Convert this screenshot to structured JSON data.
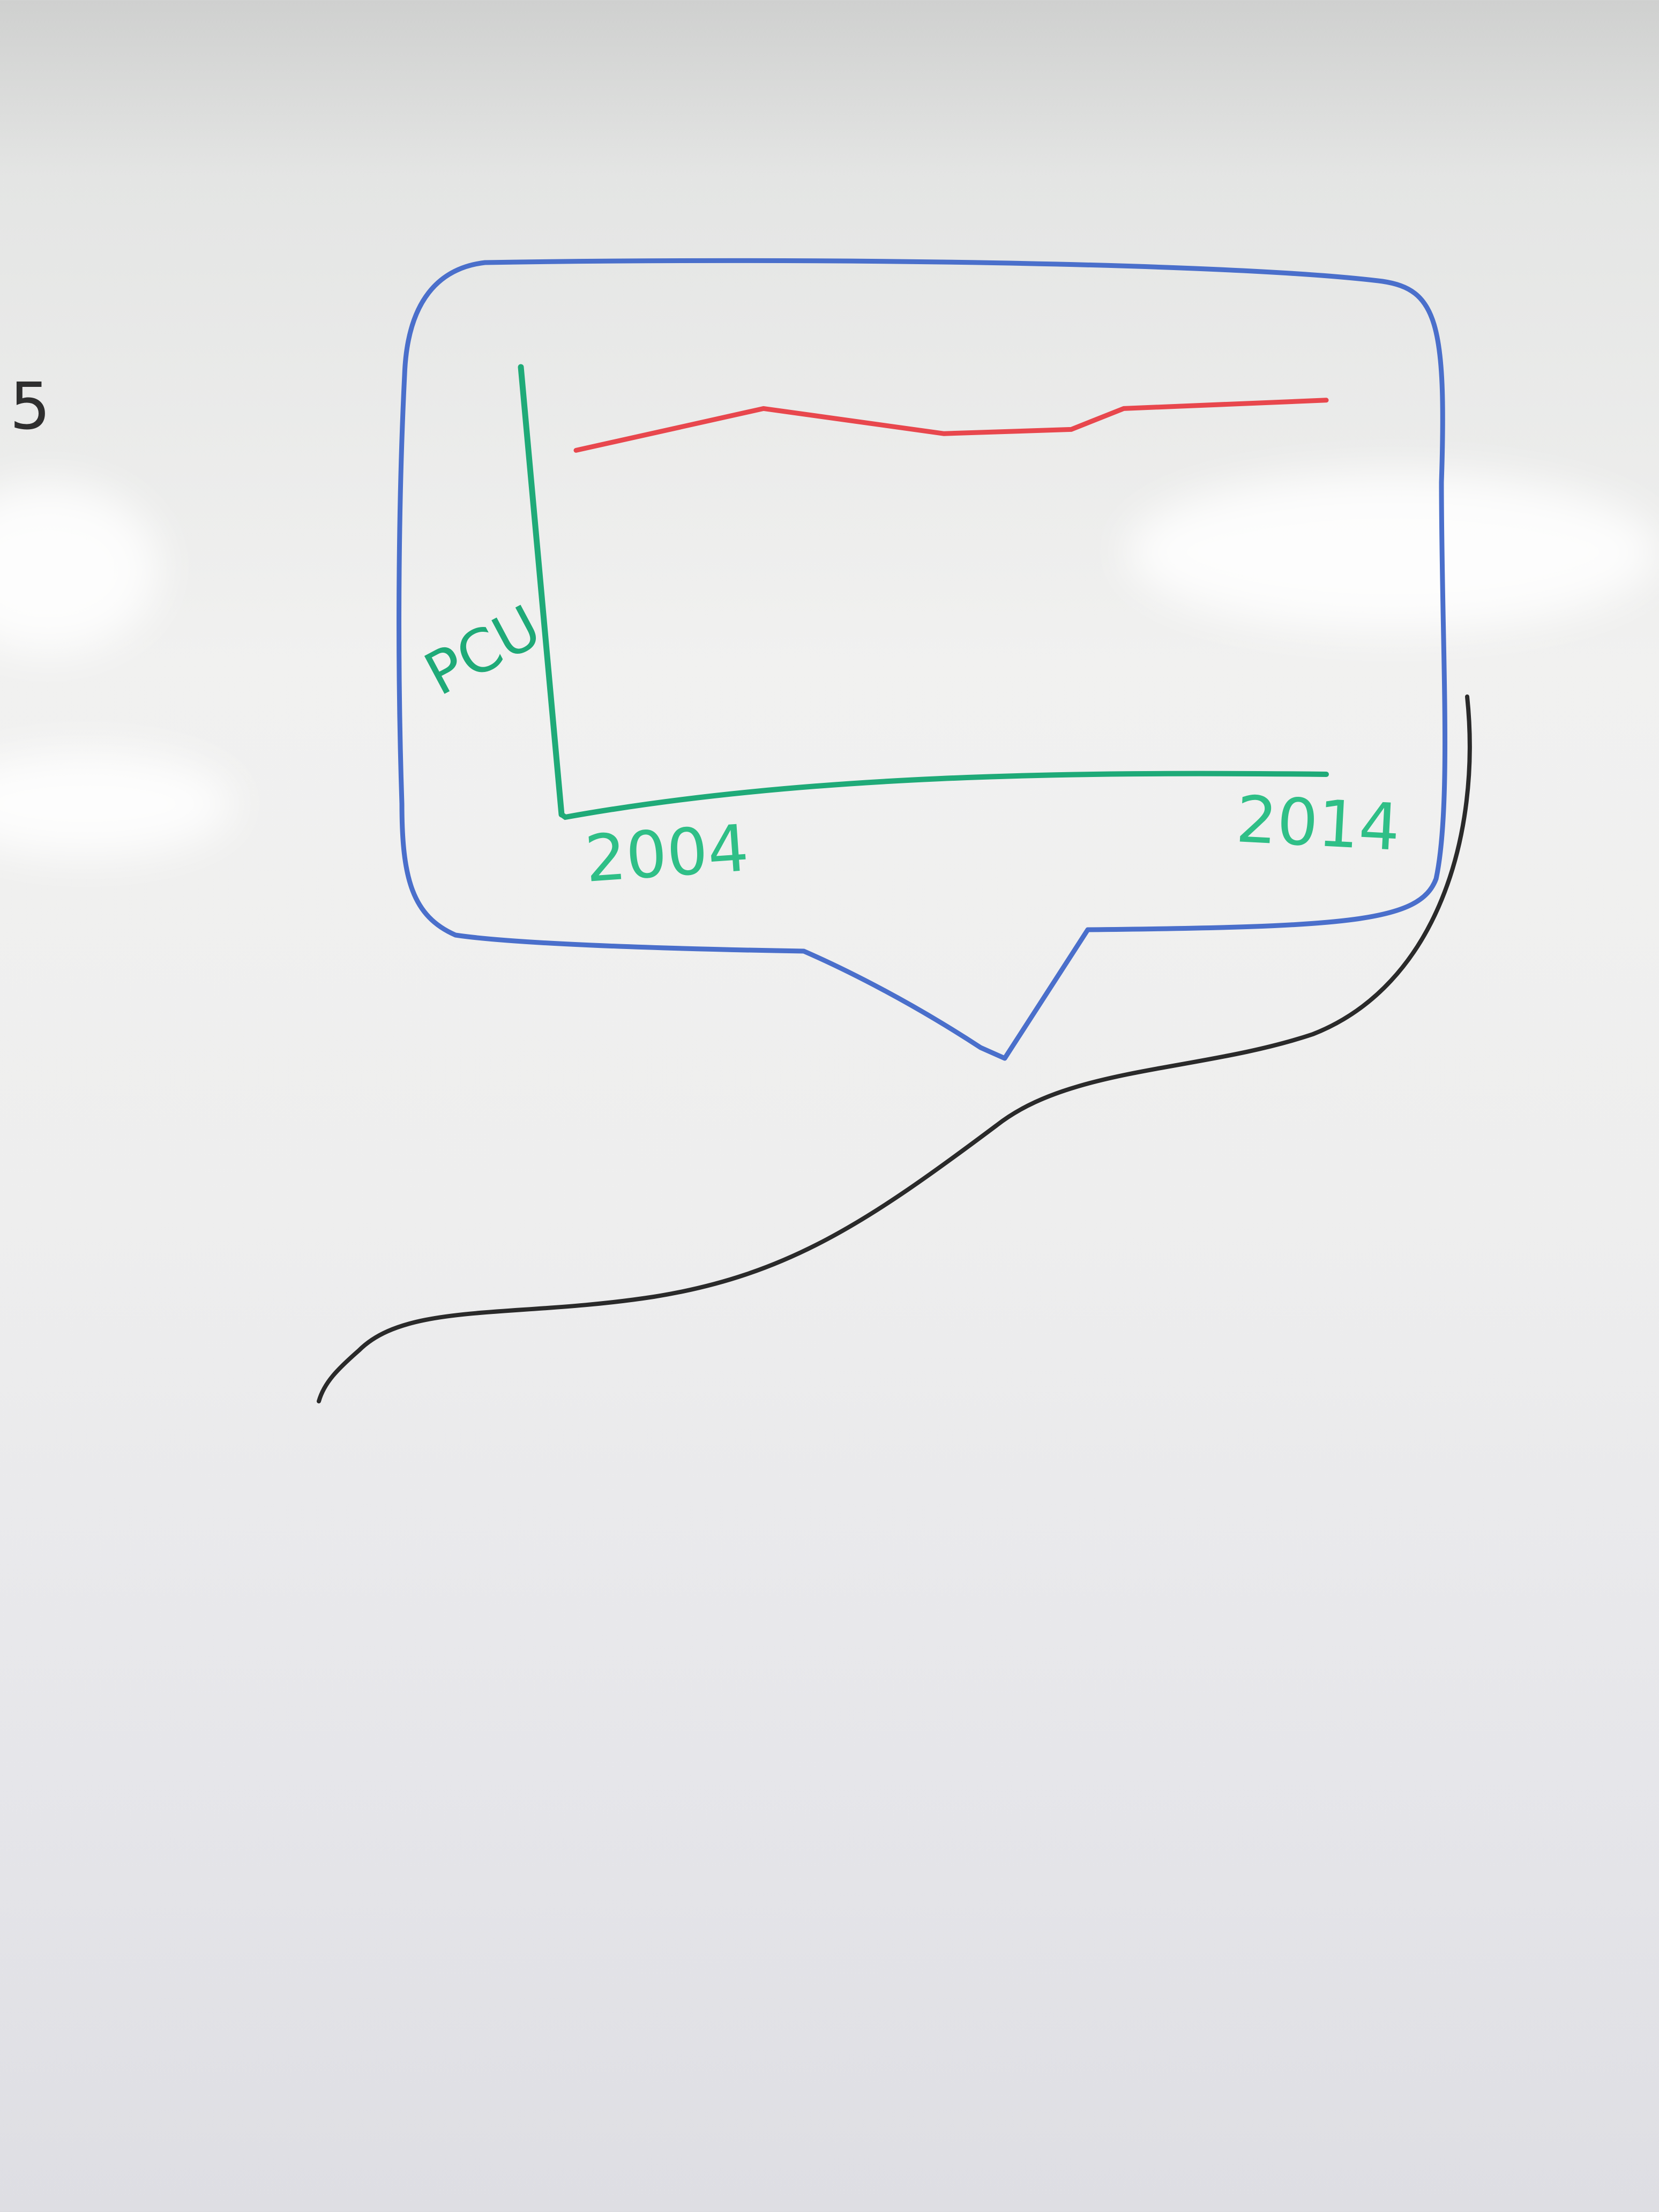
{
  "margin_mark": "5",
  "chart_data": {
    "type": "line",
    "title": "",
    "xlabel": "",
    "ylabel": "PCU",
    "x_tick_labels": [
      "2004",
      "2014"
    ],
    "xlim": [
      2004,
      2014
    ],
    "ylim": [
      0,
      10
    ],
    "grid": false,
    "series": [
      {
        "x": [
          2004,
          2006.5,
          2008.9,
          2010.6,
          2011.3,
          2014
        ],
        "y": [
          8.2,
          9.2,
          8.6,
          8.7,
          9.2,
          9.4
        ]
      }
    ],
    "colors": {
      "axes": "#1faa78",
      "line": "#e8474d",
      "bubble": "#4a6fcb",
      "tail": "#2a2a2a"
    }
  }
}
